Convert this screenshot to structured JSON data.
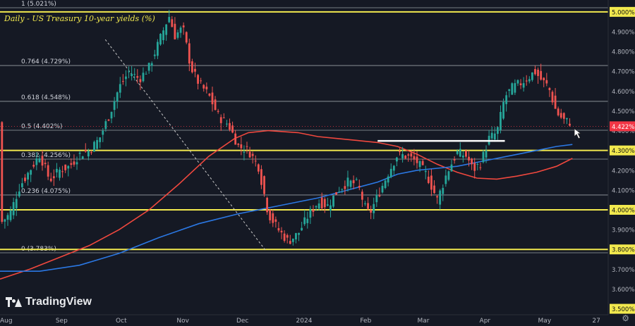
{
  "chart_data": {
    "type": "candlestick",
    "title": "Daily - US Treasury 10-year yields (%)",
    "brand": "TradingView",
    "y_axis": {
      "range": [
        3.47,
        5.06
      ],
      "ticks": [
        "5.000%",
        "4.900%",
        "4.800%",
        "4.700%",
        "4.600%",
        "4.500%",
        "4.400%",
        "4.300%",
        "4.200%",
        "4.100%",
        "4.000%",
        "3.900%",
        "3.800%",
        "3.700%",
        "3.600%",
        "3.500%"
      ],
      "tick_values": [
        5.0,
        4.9,
        4.8,
        4.7,
        4.6,
        4.5,
        4.4,
        4.3,
        4.2,
        4.1,
        4.0,
        3.9,
        3.8,
        3.7,
        3.6,
        3.5
      ],
      "highlighted_ticks": [
        "5.000%",
        "4.300%",
        "4.000%",
        "3.800%",
        "3.500%"
      ]
    },
    "x_axis": {
      "labels": [
        "Aug",
        "Sep",
        "Oct",
        "Nov",
        "Dec",
        "2024",
        "Feb",
        "Mar",
        "Apr",
        "May",
        "27"
      ],
      "label_days": [
        0,
        31,
        61,
        92,
        122,
        153,
        184,
        213,
        244,
        274,
        300
      ],
      "range_days": [
        0,
        306
      ]
    },
    "price_label": {
      "text": "4.422%",
      "value": 4.422,
      "color": "#f23645"
    },
    "fibonacci": [
      {
        "label": "1 (5.021%)",
        "value": 5.021
      },
      {
        "label": "0.764 (4.729%)",
        "value": 4.729
      },
      {
        "label": "0.618 (4.548%)",
        "value": 4.548
      },
      {
        "label": "0.5 (4.402%)",
        "value": 4.402
      },
      {
        "label": "0.382 (4.256%)",
        "value": 4.256
      },
      {
        "label": "0.236 (4.075%)",
        "value": 4.075
      },
      {
        "label": "0 (3.783%)",
        "value": 3.783
      }
    ],
    "horizontal_levels": [
      5.0,
      4.3,
      4.0,
      3.8
    ],
    "resistance_segment": {
      "from_day": 190,
      "to_day": 254,
      "value": 4.348
    },
    "series": [
      {
        "name": "moving-average-red",
        "color": "#f0483e",
        "points": [
          [
            0,
            3.65
          ],
          [
            15,
            3.7
          ],
          [
            30,
            3.76
          ],
          [
            45,
            3.82
          ],
          [
            60,
            3.9
          ],
          [
            75,
            4.0
          ],
          [
            90,
            4.13
          ],
          [
            105,
            4.27
          ],
          [
            118,
            4.36
          ],
          [
            125,
            4.39
          ],
          [
            135,
            4.4
          ],
          [
            150,
            4.39
          ],
          [
            160,
            4.37
          ],
          [
            170,
            4.36
          ],
          [
            180,
            4.35
          ],
          [
            190,
            4.34
          ],
          [
            200,
            4.32
          ],
          [
            210,
            4.28
          ],
          [
            220,
            4.23
          ],
          [
            230,
            4.19
          ],
          [
            240,
            4.16
          ],
          [
            250,
            4.155
          ],
          [
            260,
            4.17
          ],
          [
            270,
            4.19
          ],
          [
            280,
            4.22
          ],
          [
            288,
            4.26
          ]
        ]
      },
      {
        "name": "moving-average-blue",
        "color": "#2b78e4",
        "points": [
          [
            0,
            3.69
          ],
          [
            20,
            3.69
          ],
          [
            40,
            3.72
          ],
          [
            60,
            3.78
          ],
          [
            80,
            3.86
          ],
          [
            100,
            3.93
          ],
          [
            120,
            3.98
          ],
          [
            140,
            4.02
          ],
          [
            160,
            4.06
          ],
          [
            175,
            4.1
          ],
          [
            190,
            4.14
          ],
          [
            200,
            4.18
          ],
          [
            210,
            4.2
          ],
          [
            220,
            4.21
          ],
          [
            230,
            4.22
          ],
          [
            240,
            4.24
          ],
          [
            250,
            4.26
          ],
          [
            260,
            4.28
          ],
          [
            270,
            4.3
          ],
          [
            280,
            4.32
          ],
          [
            288,
            4.33
          ]
        ]
      }
    ],
    "annotations": [
      {
        "type": "trendline",
        "from": [
          53,
          4.86
        ],
        "to": [
          134,
          3.79
        ],
        "style": "dashed"
      },
      {
        "type": "cursor",
        "at": [
          289,
          4.41
        ]
      }
    ],
    "price_path": [
      [
        0,
        3.93
      ],
      [
        5,
        3.98
      ],
      [
        10,
        4.12
      ],
      [
        15,
        4.2
      ],
      [
        20,
        4.28
      ],
      [
        25,
        4.15
      ],
      [
        30,
        4.2
      ],
      [
        35,
        4.22
      ],
      [
        40,
        4.28
      ],
      [
        45,
        4.3
      ],
      [
        50,
        4.36
      ],
      [
        55,
        4.48
      ],
      [
        60,
        4.62
      ],
      [
        65,
        4.7
      ],
      [
        70,
        4.66
      ],
      [
        75,
        4.72
      ],
      [
        80,
        4.85
      ],
      [
        85,
        4.98
      ],
      [
        88,
        4.88
      ],
      [
        92,
        4.92
      ],
      [
        96,
        4.72
      ],
      [
        100,
        4.64
      ],
      [
        105,
        4.58
      ],
      [
        110,
        4.47
      ],
      [
        115,
        4.43
      ],
      [
        120,
        4.32
      ],
      [
        125,
        4.3
      ],
      [
        130,
        4.22
      ],
      [
        135,
        3.98
      ],
      [
        140,
        3.9
      ],
      [
        145,
        3.84
      ],
      [
        150,
        3.88
      ],
      [
        155,
        3.97
      ],
      [
        160,
        4.04
      ],
      [
        165,
        4.02
      ],
      [
        170,
        4.1
      ],
      [
        175,
        4.14
      ],
      [
        180,
        4.13
      ],
      [
        184,
        4.0
      ],
      [
        186,
        3.98
      ],
      [
        190,
        4.07
      ],
      [
        195,
        4.18
      ],
      [
        200,
        4.28
      ],
      [
        205,
        4.27
      ],
      [
        210,
        4.24
      ],
      [
        215,
        4.17
      ],
      [
        220,
        4.05
      ],
      [
        225,
        4.19
      ],
      [
        230,
        4.29
      ],
      [
        235,
        4.27
      ],
      [
        238,
        4.2
      ],
      [
        242,
        4.24
      ],
      [
        246,
        4.36
      ],
      [
        250,
        4.39
      ],
      [
        254,
        4.57
      ],
      [
        258,
        4.62
      ],
      [
        262,
        4.64
      ],
      [
        266,
        4.67
      ],
      [
        269,
        4.7
      ],
      [
        272,
        4.66
      ],
      [
        276,
        4.62
      ],
      [
        280,
        4.49
      ],
      [
        284,
        4.45
      ],
      [
        288,
        4.44
      ]
    ]
  },
  "ui": {
    "settings_icon": "gear-icon"
  }
}
